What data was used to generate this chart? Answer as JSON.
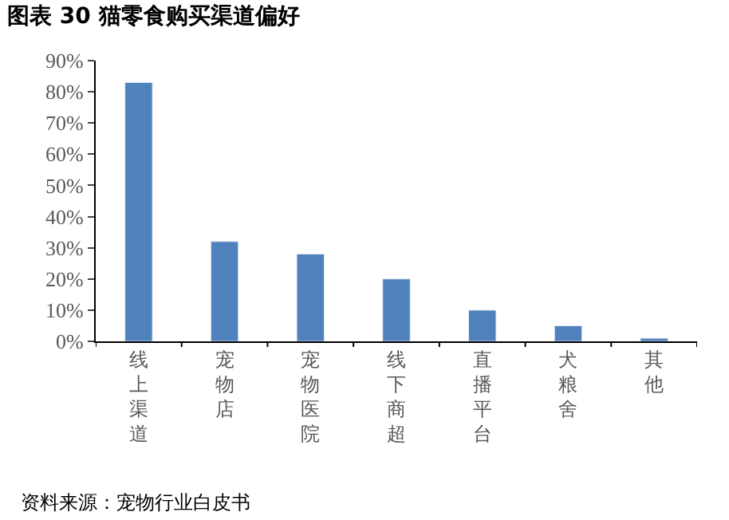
{
  "chart_data": {
    "type": "bar",
    "title": "图表 30 猫零食购买渠道偏好",
    "categories": [
      "线上渠道",
      "宠物店",
      "宠物医院",
      "线下商超",
      "直播平台",
      "犬粮舍",
      "其他"
    ],
    "values": [
      83,
      32,
      28,
      20,
      10,
      5,
      1
    ],
    "color": "#4f81bd",
    "ylim": [
      0,
      90
    ],
    "yticks": [
      {
        "value": 0,
        "label": "0%"
      },
      {
        "value": 10,
        "label": "10%"
      },
      {
        "value": 20,
        "label": "20%"
      },
      {
        "value": 30,
        "label": "30%"
      },
      {
        "value": 40,
        "label": "40%"
      },
      {
        "value": 50,
        "label": "50%"
      },
      {
        "value": 60,
        "label": "60%"
      },
      {
        "value": 70,
        "label": "70%"
      },
      {
        "value": 80,
        "label": "80%"
      },
      {
        "value": 90,
        "label": "90%"
      }
    ],
    "grid": false,
    "annotations": [
      "资料来源：宠物行业白皮书"
    ]
  }
}
